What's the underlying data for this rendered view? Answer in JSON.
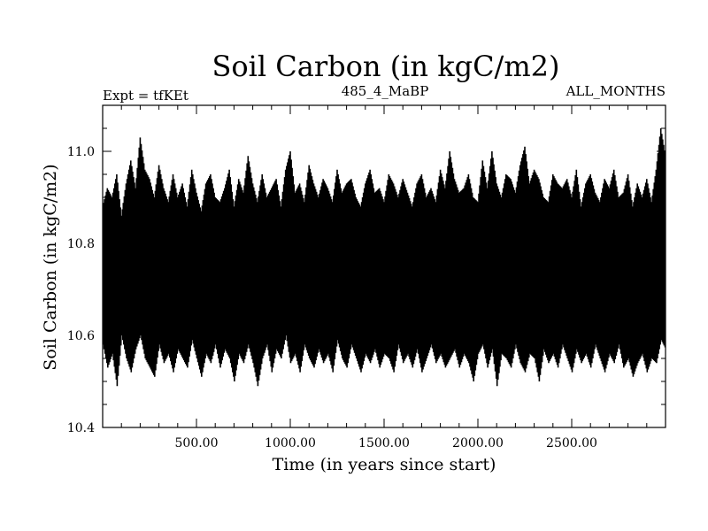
{
  "chart_data": {
    "type": "line",
    "title": "Soil Carbon (in kgC/m2)",
    "subtitle_left": "Expt = tfKEt",
    "subtitle_center": "485_4_MaBP",
    "subtitle_right": "ALL_MONTHS",
    "xlabel": "Time (in years since start)",
    "ylabel": "Soil Carbon (in kgC/m2)",
    "xlim": [
      0,
      3000
    ],
    "ylim": [
      10.4,
      11.1
    ],
    "x_ticks": [
      500,
      1000,
      1500,
      2000,
      2500
    ],
    "x_tick_labels": [
      "500.00",
      "1000.00",
      "1500.00",
      "2000.00",
      "2500.00"
    ],
    "y_ticks": [
      10.4,
      10.6,
      10.8,
      11.0
    ],
    "y_tick_labels": [
      "10.4",
      "10.6",
      "10.8",
      "11.0"
    ],
    "grid": false,
    "legend": "none",
    "line_color": "#000000",
    "series": [
      {
        "x_start": 0,
        "x_end": 3000,
        "x_step": 25,
        "upper": [
          10.88,
          10.92,
          10.9,
          10.95,
          10.86,
          10.93,
          10.98,
          10.92,
          11.03,
          10.96,
          10.94,
          10.9,
          10.97,
          10.92,
          10.89,
          10.95,
          10.9,
          10.93,
          10.88,
          10.96,
          10.91,
          10.87,
          10.93,
          10.95,
          10.9,
          10.89,
          10.92,
          10.96,
          10.88,
          10.94,
          10.91,
          10.99,
          10.93,
          10.89,
          10.95,
          10.9,
          10.92,
          10.94,
          10.88,
          10.96,
          11.0,
          10.91,
          10.93,
          10.89,
          10.97,
          10.93,
          10.9,
          10.94,
          10.92,
          10.89,
          10.96,
          10.91,
          10.93,
          10.94,
          10.9,
          10.88,
          10.93,
          10.96,
          10.91,
          10.92,
          10.89,
          10.95,
          10.93,
          10.9,
          10.94,
          10.91,
          10.88,
          10.93,
          10.95,
          10.9,
          10.92,
          10.89,
          10.96,
          10.92,
          11.0,
          10.94,
          10.91,
          10.92,
          10.95,
          10.9,
          10.89,
          10.98,
          10.92,
          11.0,
          10.93,
          10.9,
          10.95,
          10.94,
          10.91,
          10.97,
          11.01,
          10.93,
          10.96,
          10.94,
          10.9,
          10.89,
          10.95,
          10.93,
          10.92,
          10.94,
          10.9,
          10.96,
          10.88,
          10.93,
          10.95,
          10.91,
          10.89,
          10.94,
          10.92,
          10.96,
          10.9,
          10.91,
          10.95,
          10.88,
          10.93,
          10.9,
          10.94,
          10.89,
          10.96,
          11.05,
          10.99
        ],
        "lower": [
          10.58,
          10.53,
          10.56,
          10.49,
          10.6,
          10.55,
          10.52,
          10.57,
          10.6,
          10.55,
          10.53,
          10.51,
          10.58,
          10.54,
          10.56,
          10.52,
          10.57,
          10.55,
          10.53,
          10.59,
          10.55,
          10.51,
          10.56,
          10.54,
          10.58,
          10.53,
          10.57,
          10.55,
          10.5,
          10.56,
          10.54,
          10.58,
          10.54,
          10.49,
          10.55,
          10.58,
          10.52,
          10.57,
          10.55,
          10.6,
          10.54,
          10.56,
          10.52,
          10.58,
          10.55,
          10.53,
          10.57,
          10.54,
          10.56,
          10.52,
          10.59,
          10.55,
          10.53,
          10.58,
          10.55,
          10.52,
          10.56,
          10.54,
          10.57,
          10.53,
          10.56,
          10.55,
          10.52,
          10.58,
          10.54,
          10.56,
          10.53,
          10.57,
          10.52,
          10.55,
          10.58,
          10.54,
          10.56,
          10.53,
          10.55,
          10.57,
          10.53,
          10.56,
          10.54,
          10.5,
          10.56,
          10.58,
          10.53,
          10.57,
          10.49,
          10.56,
          10.55,
          10.53,
          10.58,
          10.54,
          10.52,
          10.56,
          10.55,
          10.5,
          10.57,
          10.54,
          10.56,
          10.53,
          10.58,
          10.55,
          10.52,
          10.57,
          10.54,
          10.56,
          10.53,
          10.58,
          10.55,
          10.52,
          10.56,
          10.54,
          10.58,
          10.53,
          10.55,
          10.51,
          10.54,
          10.56,
          10.52,
          10.55,
          10.54,
          10.59,
          10.57
        ]
      }
    ]
  }
}
